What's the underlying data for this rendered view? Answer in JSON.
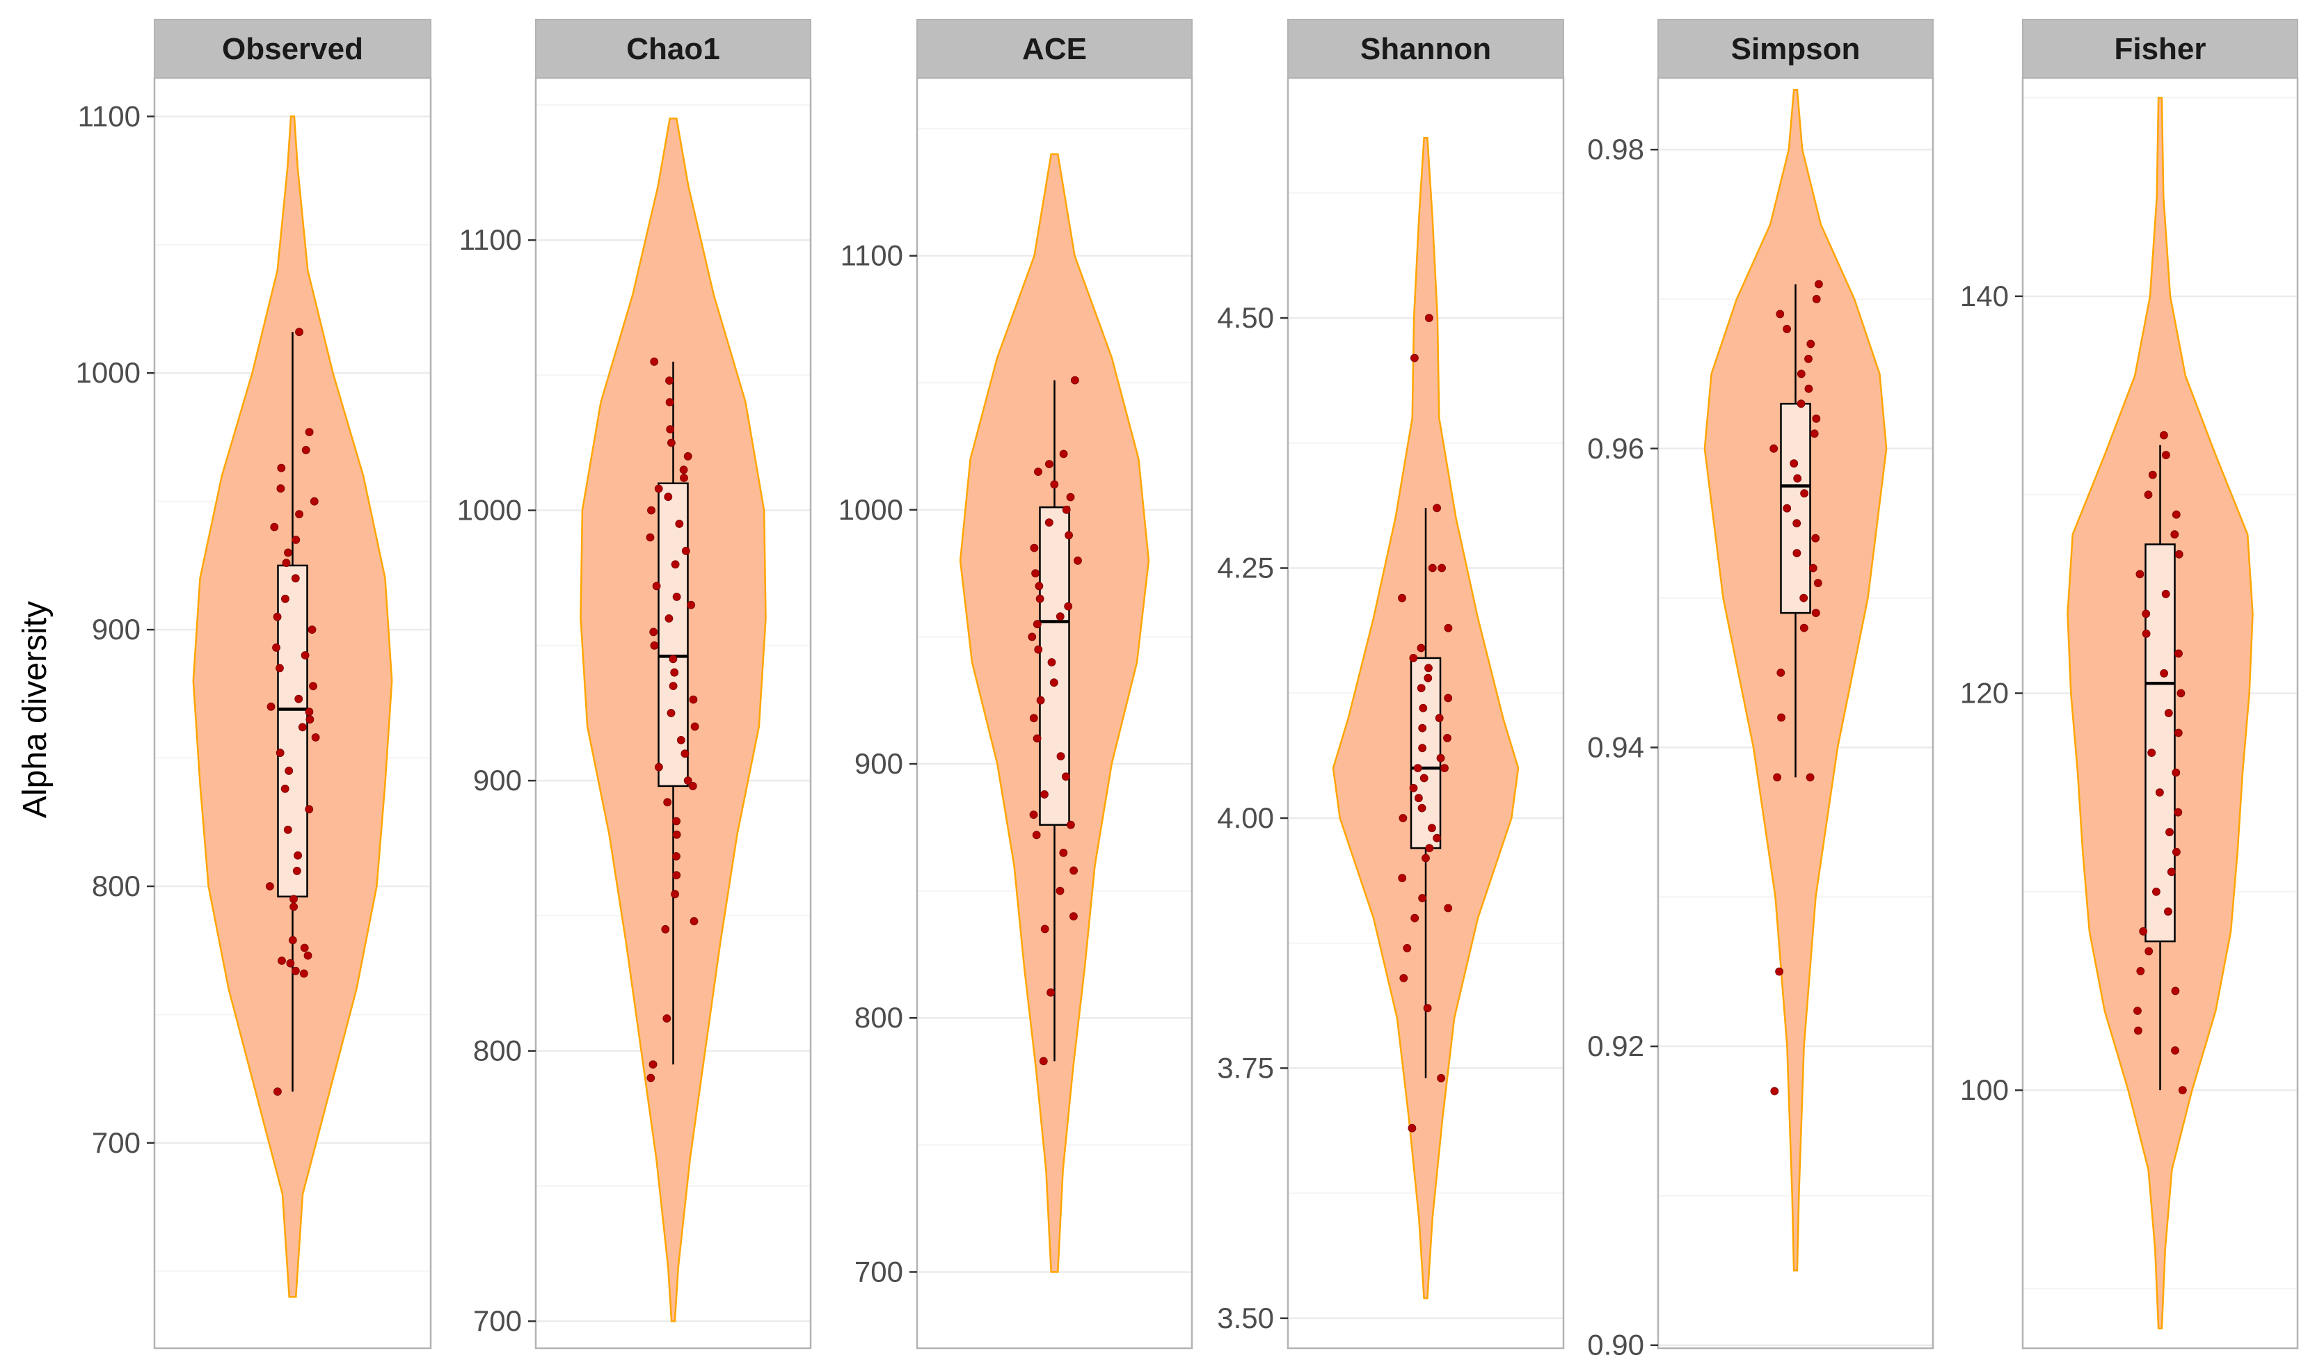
{
  "chart_data": {
    "type": "violin",
    "ylabel": "Alpha diversity",
    "colors": {
      "violin_fill": "#fdbb97",
      "violin_stroke": "#ffa500",
      "box_fill": "#fce4d6",
      "point": "#b40000",
      "strip_bg": "#bebebe",
      "panel_border": "#b3b3b3",
      "grid_major": "#ebebeb",
      "grid_minor": "#f4f4f4"
    },
    "panels": [
      {
        "name": "Observed",
        "ylim": [
          620,
          1115
        ],
        "ticks": [
          700,
          800,
          900,
          1000,
          1100
        ],
        "tick_labels": [
          "700",
          "800",
          "900",
          "1000",
          "1100"
        ],
        "box": {
          "min": 720,
          "q1": 796,
          "median": 869,
          "q3": 925,
          "max": 1016
        },
        "violin": [
          [
            640,
            2
          ],
          [
            680,
            6
          ],
          [
            720,
            22
          ],
          [
            760,
            38
          ],
          [
            800,
            50
          ],
          [
            840,
            55
          ],
          [
            880,
            59
          ],
          [
            920,
            55
          ],
          [
            960,
            42
          ],
          [
            1000,
            24
          ],
          [
            1040,
            9
          ],
          [
            1080,
            3
          ],
          [
            1100,
            1
          ]
        ],
        "points": [
          720,
          766,
          767,
          770,
          771,
          773,
          776,
          779,
          792,
          795,
          800,
          806,
          812,
          822,
          830,
          838,
          845,
          852,
          858,
          862,
          865,
          868,
          870,
          873,
          878,
          885,
          890,
          893,
          900,
          905,
          912,
          920,
          926,
          930,
          935,
          940,
          945,
          950,
          955,
          963,
          970,
          977,
          1016
        ]
      },
      {
        "name": "Chao1",
        "ylim": [
          690,
          1160
        ],
        "ticks": [
          700,
          800,
          900,
          1000,
          1100
        ],
        "tick_labels": [
          "700",
          "800",
          "900",
          "1000",
          "1100"
        ],
        "box": {
          "min": 795,
          "q1": 898,
          "median": 946,
          "q3": 1010,
          "max": 1055
        },
        "violin": [
          [
            700,
            1
          ],
          [
            720,
            3
          ],
          [
            760,
            10
          ],
          [
            800,
            19
          ],
          [
            840,
            28
          ],
          [
            880,
            38
          ],
          [
            920,
            51
          ],
          [
            960,
            55
          ],
          [
            1000,
            54
          ],
          [
            1040,
            43
          ],
          [
            1080,
            24
          ],
          [
            1120,
            9
          ],
          [
            1145,
            2
          ]
        ],
        "points": [
          790,
          795,
          812,
          845,
          848,
          858,
          865,
          872,
          880,
          885,
          892,
          898,
          900,
          905,
          910,
          915,
          920,
          925,
          930,
          935,
          940,
          945,
          950,
          955,
          960,
          965,
          968,
          972,
          980,
          985,
          990,
          995,
          1000,
          1005,
          1008,
          1012,
          1015,
          1020,
          1025,
          1030,
          1040,
          1048,
          1055
        ]
      },
      {
        "name": "ACE",
        "ylim": [
          670,
          1170
        ],
        "ticks": [
          700,
          800,
          900,
          1000,
          1100
        ],
        "tick_labels": [
          "700",
          "800",
          "900",
          "1000",
          "1100"
        ],
        "box": {
          "min": 783,
          "q1": 876,
          "median": 956,
          "q3": 1001,
          "max": 1051
        },
        "violin": [
          [
            700,
            2
          ],
          [
            740,
            5
          ],
          [
            780,
            11
          ],
          [
            820,
            18
          ],
          [
            860,
            24
          ],
          [
            900,
            34
          ],
          [
            940,
            49
          ],
          [
            980,
            56
          ],
          [
            1020,
            50
          ],
          [
            1060,
            34
          ],
          [
            1100,
            12
          ],
          [
            1140,
            2
          ]
        ],
        "points": [
          783,
          810,
          835,
          840,
          850,
          858,
          865,
          872,
          876,
          880,
          888,
          895,
          903,
          910,
          918,
          925,
          932,
          940,
          945,
          950,
          955,
          958,
          962,
          965,
          970,
          975,
          980,
          985,
          990,
          995,
          1000,
          1005,
          1010,
          1015,
          1018,
          1022,
          1051
        ]
      },
      {
        "name": "Shannon",
        "ylim": [
          3.47,
          4.74
        ],
        "ticks": [
          3.5,
          3.75,
          4.0,
          4.25,
          4.5
        ],
        "tick_labels": [
          "3.50",
          "3.75",
          "4.00",
          "4.25",
          "4.50"
        ],
        "box": {
          "min": 3.74,
          "q1": 3.97,
          "median": 4.05,
          "q3": 4.16,
          "max": 4.31
        },
        "violin": [
          [
            3.52,
            1
          ],
          [
            3.6,
            4
          ],
          [
            3.7,
            10
          ],
          [
            3.8,
            17
          ],
          [
            3.9,
            31
          ],
          [
            4.0,
            51
          ],
          [
            4.05,
            55
          ],
          [
            4.1,
            46
          ],
          [
            4.2,
            31
          ],
          [
            4.3,
            18
          ],
          [
            4.4,
            8
          ],
          [
            4.5,
            7
          ],
          [
            4.6,
            4
          ],
          [
            4.68,
            1
          ]
        ],
        "points": [
          3.69,
          3.74,
          3.81,
          3.84,
          3.87,
          3.9,
          3.91,
          3.92,
          3.94,
          3.96,
          3.97,
          3.98,
          3.99,
          4.0,
          4.01,
          4.02,
          4.03,
          4.04,
          4.05,
          4.05,
          4.06,
          4.07,
          4.08,
          4.09,
          4.1,
          4.11,
          4.12,
          4.13,
          4.14,
          4.15,
          4.16,
          4.17,
          4.19,
          4.22,
          4.25,
          4.25,
          4.31,
          4.46,
          4.5
        ]
      },
      {
        "name": "Simpson",
        "ylim": [
          0.8998,
          0.9848
        ],
        "ticks": [
          0.9,
          0.92,
          0.94,
          0.96,
          0.98
        ],
        "tick_labels": [
          "0.90",
          "0.92",
          "0.94",
          "0.96",
          "0.98"
        ],
        "box": {
          "min": 0.938,
          "q1": 0.949,
          "median": 0.9575,
          "q3": 0.963,
          "max": 0.971
        },
        "violin": [
          [
            0.905,
            1
          ],
          [
            0.91,
            2
          ],
          [
            0.92,
            5
          ],
          [
            0.93,
            12
          ],
          [
            0.94,
            25
          ],
          [
            0.95,
            43
          ],
          [
            0.96,
            54
          ],
          [
            0.965,
            50
          ],
          [
            0.97,
            35
          ],
          [
            0.975,
            15
          ],
          [
            0.98,
            4
          ],
          [
            0.984,
            1
          ]
        ],
        "points": [
          0.917,
          0.925,
          0.938,
          0.938,
          0.942,
          0.945,
          0.948,
          0.949,
          0.95,
          0.951,
          0.952,
          0.953,
          0.954,
          0.955,
          0.956,
          0.957,
          0.958,
          0.959,
          0.96,
          0.961,
          0.962,
          0.963,
          0.964,
          0.965,
          0.966,
          0.967,
          0.968,
          0.969,
          0.97,
          0.971
        ]
      },
      {
        "name": "Fisher",
        "ylim": [
          87,
          151
        ],
        "ticks": [
          100,
          120,
          140
        ],
        "tick_labels": [
          "100",
          "120",
          "140"
        ],
        "box": {
          "min": 100,
          "q1": 107.5,
          "median": 120.5,
          "q3": 127.5,
          "max": 132.5
        },
        "violin": [
          [
            88,
            1
          ],
          [
            92,
            3
          ],
          [
            96,
            7
          ],
          [
            100,
            19
          ],
          [
            104,
            33
          ],
          [
            108,
            42
          ],
          [
            112,
            46
          ],
          [
            116,
            49
          ],
          [
            120,
            53
          ],
          [
            124,
            55
          ],
          [
            128,
            52
          ],
          [
            132,
            33
          ],
          [
            136,
            15
          ],
          [
            140,
            6
          ],
          [
            145,
            2
          ],
          [
            150,
            1
          ]
        ],
        "points": [
          100,
          102,
          103,
          104,
          105,
          106,
          107,
          108,
          109,
          110,
          111,
          112,
          113,
          114,
          115,
          116,
          117,
          118,
          119,
          120,
          121,
          122,
          123,
          124,
          125,
          126,
          127,
          128,
          129,
          130,
          131,
          132,
          133
        ]
      }
    ]
  }
}
